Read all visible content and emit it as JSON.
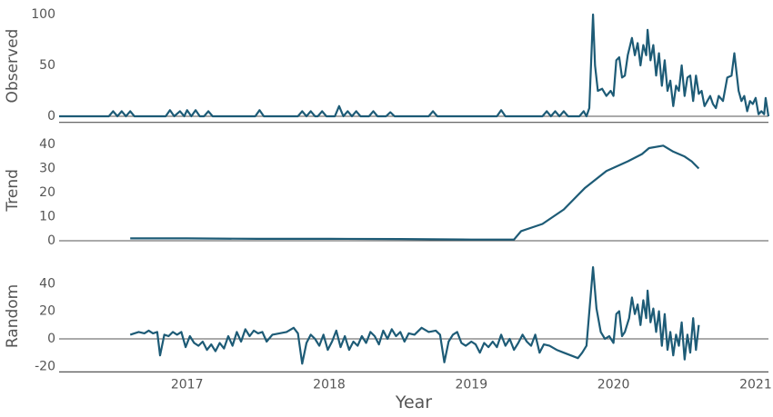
{
  "chart_data": [
    {
      "type": "line",
      "y_label": "Observed",
      "color": "#1d5b76",
      "xlim": [
        2016.1,
        2021.09
      ],
      "ylim": [
        -6,
        105
      ],
      "yticks": [
        0,
        50,
        100
      ],
      "x": [
        2016.1,
        2016.45,
        2016.48,
        2016.51,
        2016.54,
        2016.57,
        2016.6,
        2016.63,
        2016.85,
        2016.88,
        2016.91,
        2016.95,
        2016.98,
        2017.0,
        2017.03,
        2017.06,
        2017.09,
        2017.12,
        2017.15,
        2017.18,
        2017.48,
        2017.51,
        2017.54,
        2017.78,
        2017.81,
        2017.84,
        2017.87,
        2017.9,
        2017.92,
        2017.95,
        2017.98,
        2018.04,
        2018.07,
        2018.1,
        2018.13,
        2018.16,
        2018.19,
        2018.22,
        2018.28,
        2018.31,
        2018.34,
        2018.4,
        2018.43,
        2018.46,
        2018.7,
        2018.73,
        2018.76,
        2019.18,
        2019.21,
        2019.24,
        2019.5,
        2019.53,
        2019.56,
        2019.59,
        2019.62,
        2019.65,
        2019.68,
        2019.76,
        2019.79,
        2019.81,
        2019.83,
        2019.856,
        2019.87,
        2019.89,
        2019.92,
        2019.95,
        2019.98,
        2020.0,
        2020.02,
        2020.04,
        2020.06,
        2020.08,
        2020.1,
        2020.13,
        2020.15,
        2020.17,
        2020.19,
        2020.21,
        2020.23,
        2020.24,
        2020.26,
        2020.28,
        2020.3,
        2020.32,
        2020.34,
        2020.36,
        2020.38,
        2020.4,
        2020.42,
        2020.44,
        2020.46,
        2020.48,
        2020.5,
        2020.52,
        2020.54,
        2020.56,
        2020.58,
        2020.6,
        2020.62,
        2020.64,
        2020.66,
        2020.68,
        2020.7,
        2020.72,
        2020.74,
        2020.77,
        2020.8,
        2020.83,
        2020.85,
        2020.88,
        2020.9,
        2020.92,
        2020.94,
        2020.96,
        2020.98,
        2021.0,
        2021.02,
        2021.04,
        2021.06,
        2021.07,
        2021.09
      ],
      "values": [
        0,
        0,
        5,
        0,
        5,
        0,
        5,
        0,
        0,
        6,
        0,
        5,
        0,
        6,
        0,
        6,
        0,
        0,
        5,
        0,
        0,
        6,
        0,
        0,
        5,
        0,
        5,
        0,
        0,
        5,
        0,
        0,
        10,
        0,
        5,
        0,
        5,
        0,
        0,
        5,
        0,
        0,
        4,
        0,
        0,
        5,
        0,
        0,
        6,
        0,
        0,
        5,
        0,
        5,
        0,
        5,
        0,
        0,
        5,
        0,
        8,
        100,
        50,
        25,
        27,
        20,
        25,
        20,
        55,
        58,
        38,
        40,
        60,
        77,
        60,
        72,
        50,
        70,
        60,
        85,
        55,
        70,
        40,
        62,
        30,
        55,
        25,
        35,
        10,
        30,
        25,
        50,
        20,
        38,
        40,
        15,
        40,
        22,
        25,
        10,
        15,
        20,
        12,
        8,
        20,
        15,
        38,
        40,
        62,
        25,
        15,
        20,
        5,
        15,
        12,
        18,
        2,
        5,
        2,
        18,
        0
      ]
    },
    {
      "type": "line",
      "y_label": "Trend",
      "color": "#1d5b76",
      "xlim": [
        2016.1,
        2021.09
      ],
      "ylim": [
        -2,
        44
      ],
      "yticks": [
        0,
        10,
        20,
        30,
        40
      ],
      "x": [
        2016.6,
        2017.0,
        2017.5,
        2018.0,
        2018.5,
        2019.0,
        2019.3,
        2019.35,
        2019.5,
        2019.65,
        2019.8,
        2019.95,
        2020.1,
        2020.2,
        2020.25,
        2020.35,
        2020.42,
        2020.5,
        2020.55,
        2020.6
      ],
      "values": [
        1,
        1,
        0.8,
        0.8,
        0.7,
        0.5,
        0.5,
        4,
        7,
        13,
        22,
        29,
        33,
        36,
        38.5,
        39.5,
        37,
        35,
        33,
        30
      ]
    },
    {
      "type": "line",
      "y_label": "Random",
      "x_label": "Year",
      "color": "#1d5b76",
      "xlim": [
        2016.1,
        2021.09
      ],
      "ylim": [
        -24,
        57
      ],
      "yticks": [
        -20,
        0,
        20,
        40
      ],
      "xticks": [
        2017,
        2018,
        2019,
        2020,
        2021
      ],
      "x": [
        2016.6,
        2016.63,
        2016.66,
        2016.7,
        2016.73,
        2016.76,
        2016.79,
        2016.81,
        2016.84,
        2016.87,
        2016.9,
        2016.93,
        2016.96,
        2016.99,
        2017.02,
        2017.05,
        2017.08,
        2017.11,
        2017.14,
        2017.17,
        2017.2,
        2017.23,
        2017.26,
        2017.29,
        2017.32,
        2017.35,
        2017.38,
        2017.41,
        2017.44,
        2017.47,
        2017.5,
        2017.53,
        2017.56,
        2017.6,
        2017.65,
        2017.7,
        2017.75,
        2017.78,
        2017.81,
        2017.84,
        2017.87,
        2017.9,
        2017.93,
        2017.96,
        2017.99,
        2018.02,
        2018.05,
        2018.08,
        2018.11,
        2018.14,
        2018.17,
        2018.2,
        2018.23,
        2018.26,
        2018.29,
        2018.32,
        2018.35,
        2018.38,
        2018.41,
        2018.44,
        2018.47,
        2018.5,
        2018.53,
        2018.56,
        2018.6,
        2018.65,
        2018.7,
        2018.75,
        2018.78,
        2018.81,
        2018.84,
        2018.87,
        2018.9,
        2018.93,
        2018.96,
        2019.0,
        2019.03,
        2019.06,
        2019.09,
        2019.12,
        2019.15,
        2019.18,
        2019.21,
        2019.24,
        2019.27,
        2019.3,
        2019.33,
        2019.36,
        2019.39,
        2019.42,
        2019.45,
        2019.48,
        2019.51,
        2019.55,
        2019.6,
        2019.65,
        2019.7,
        2019.75,
        2019.78,
        2019.81,
        2019.856,
        2019.88,
        2019.91,
        2019.94,
        2019.97,
        2020.0,
        2020.02,
        2020.04,
        2020.06,
        2020.08,
        2020.11,
        2020.13,
        2020.15,
        2020.17,
        2020.19,
        2020.21,
        2020.23,
        2020.24,
        2020.26,
        2020.28,
        2020.3,
        2020.32,
        2020.34,
        2020.36,
        2020.38,
        2020.4,
        2020.42,
        2020.44,
        2020.46,
        2020.48,
        2020.5,
        2020.52,
        2020.54,
        2020.56,
        2020.58,
        2020.6
      ],
      "values": [
        3,
        4,
        5,
        4,
        6,
        4,
        5,
        -12,
        3,
        2,
        5,
        3,
        5,
        -6,
        2,
        -3,
        -5,
        -2,
        -8,
        -4,
        -9,
        -3,
        -7,
        2,
        -5,
        5,
        -2,
        7,
        2,
        6,
        4,
        5,
        -2,
        3,
        4,
        5,
        8,
        4,
        -18,
        -3,
        3,
        0,
        -5,
        3,
        -8,
        -2,
        6,
        -6,
        2,
        -8,
        -2,
        -5,
        2,
        -3,
        5,
        2,
        -4,
        6,
        0,
        7,
        2,
        5,
        -2,
        4,
        3,
        8,
        5,
        6,
        3,
        -17,
        -2,
        3,
        5,
        -3,
        -5,
        -2,
        -4,
        -10,
        -3,
        -6,
        -2,
        -6,
        3,
        -5,
        0,
        -8,
        -3,
        3,
        -2,
        -5,
        3,
        -10,
        -4,
        -5,
        -8,
        -10,
        -12,
        -14,
        -10,
        -5,
        52,
        22,
        5,
        0,
        2,
        -3,
        18,
        20,
        2,
        5,
        15,
        30,
        18,
        25,
        10,
        28,
        15,
        35,
        12,
        22,
        5,
        20,
        -5,
        18,
        -8,
        5,
        -12,
        3,
        -5,
        12,
        -15,
        3,
        -10,
        15,
        -8,
        10
      ]
    }
  ]
}
